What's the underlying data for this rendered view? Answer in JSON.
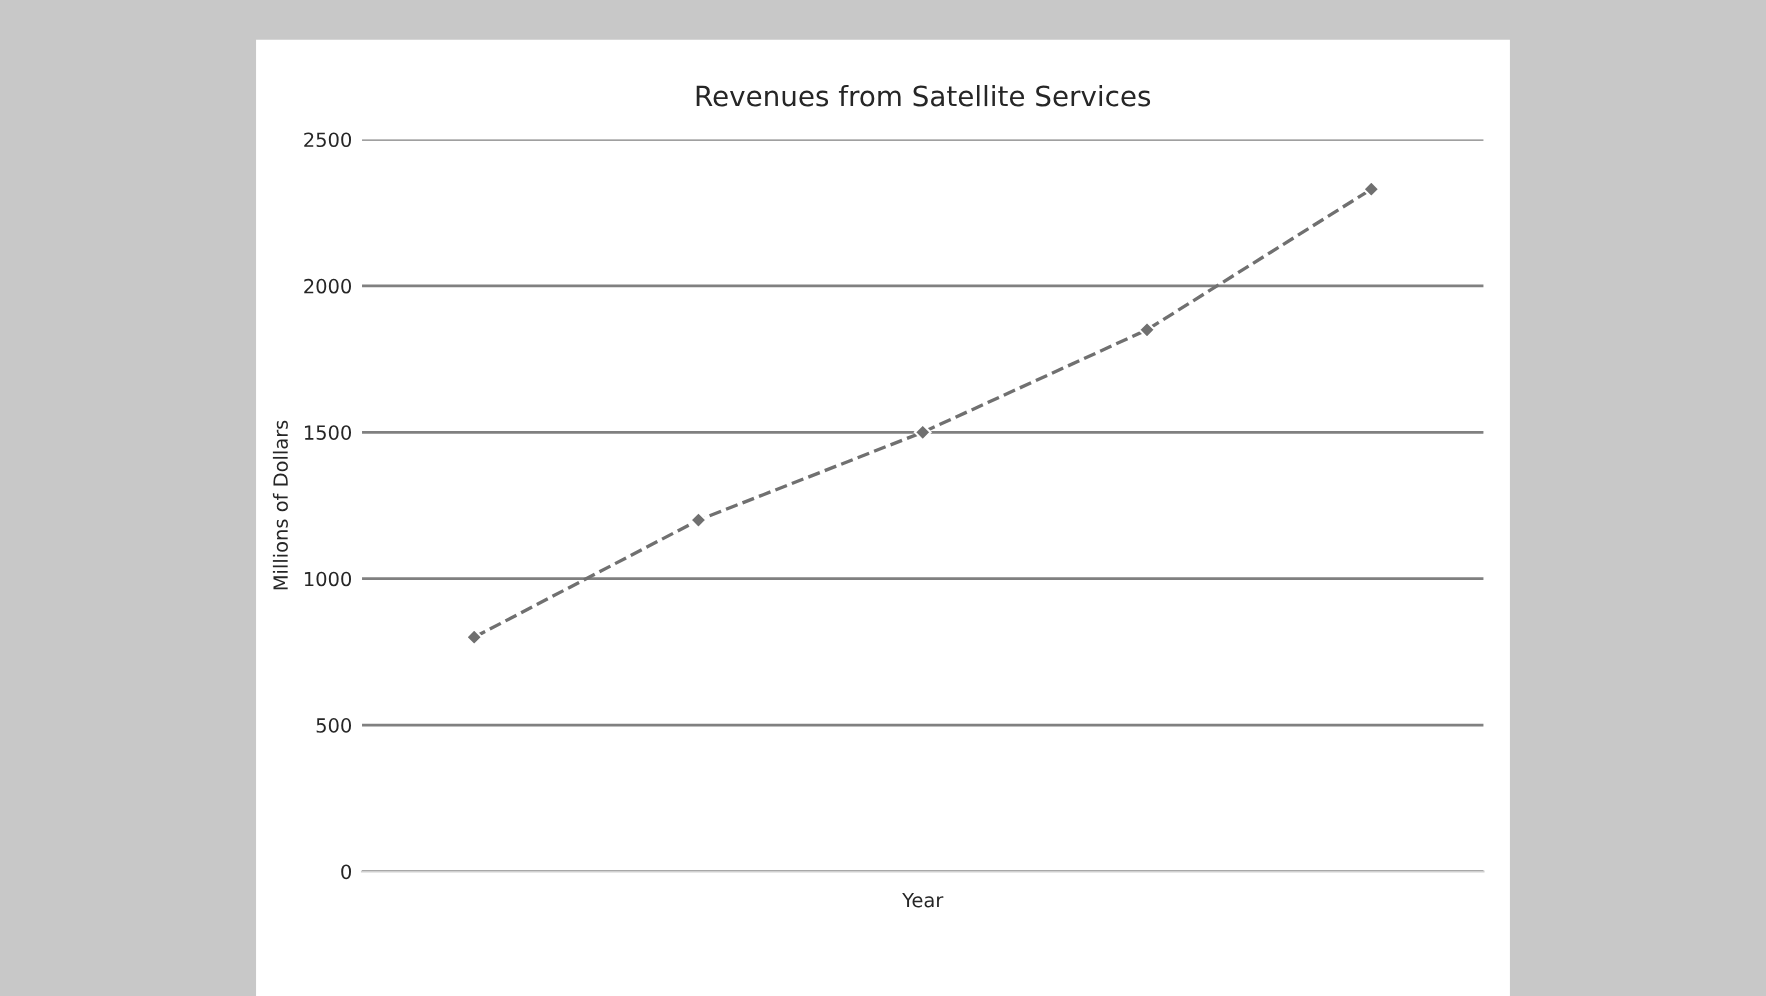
{
  "chart_data": {
    "type": "line",
    "title": "Revenues from Satellite Services",
    "xlabel": "Year",
    "ylabel": "Millions of Dollars",
    "categories": [
      null,
      null,
      null,
      null,
      null
    ],
    "series": [
      {
        "color": "#707070",
        "values": [
          800,
          1200,
          1500,
          1850,
          2330
        ]
      }
    ],
    "ylim": [
      0,
      2500
    ],
    "yticks": [
      0,
      500,
      1000,
      1500,
      2000,
      2500
    ],
    "grid": "y",
    "marker": "diamond",
    "line_style": "dashed",
    "legend": false
  }
}
